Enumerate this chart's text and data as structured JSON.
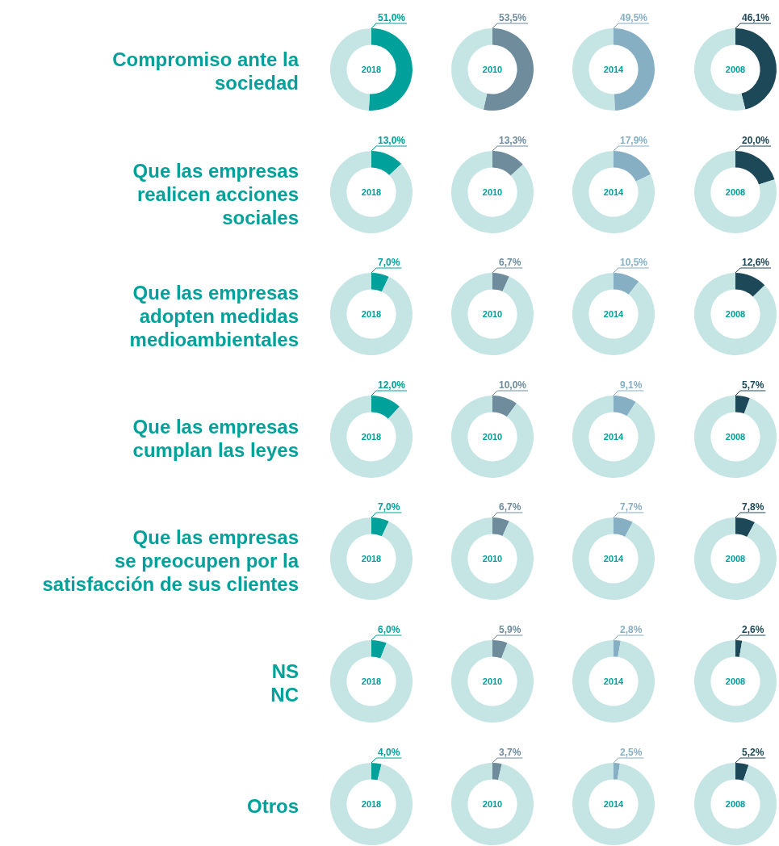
{
  "chart_data": [
    {
      "type": "donut",
      "title": "Compromiso ante la\nsociedad",
      "categories": [
        null,
        null
      ],
      "values": [
        51.0,
        49.0
      ],
      "value_labels": [
        "51,0%",
        null
      ],
      "colors": [
        "#00a19a",
        "#c5e4e4"
      ],
      "annotations": [
        "2018"
      ]
    },
    {
      "type": "donut",
      "categories": [
        null,
        null
      ],
      "values": [
        53.5,
        46.5
      ],
      "value_labels": [
        "53,5%",
        null
      ],
      "colors": [
        "#6e8c9c",
        "#c5e4e4"
      ],
      "annotations": [
        "2010"
      ]
    },
    {
      "type": "donut",
      "categories": [
        null,
        null
      ],
      "values": [
        49.5,
        50.5
      ],
      "value_labels": [
        "49,5%",
        null
      ],
      "colors": [
        "#86afc4",
        "#c5e4e4"
      ],
      "annotations": [
        "2014"
      ]
    },
    {
      "type": "donut",
      "categories": [
        null,
        null
      ],
      "values": [
        46.1,
        53.9
      ],
      "value_labels": [
        "46,1%",
        null
      ],
      "colors": [
        "#1d4858",
        "#c5e4e4"
      ],
      "annotations": [
        "2008"
      ]
    },
    {
      "type": "donut",
      "title": "Que las empresas\nrealicen acciones\nsociales",
      "categories": [
        null,
        null
      ],
      "values": [
        13.0,
        87.0
      ],
      "value_labels": [
        "13,0%",
        null
      ],
      "colors": [
        "#00a19a",
        "#c5e4e4"
      ],
      "annotations": [
        "2018"
      ]
    },
    {
      "type": "donut",
      "categories": [
        null,
        null
      ],
      "values": [
        13.3,
        86.7
      ],
      "value_labels": [
        "13,3%",
        null
      ],
      "colors": [
        "#6e8c9c",
        "#c5e4e4"
      ],
      "annotations": [
        "2010"
      ]
    },
    {
      "type": "donut",
      "categories": [
        null,
        null
      ],
      "values": [
        17.9,
        82.1
      ],
      "value_labels": [
        "17,9%",
        null
      ],
      "colors": [
        "#86afc4",
        "#c5e4e4"
      ],
      "annotations": [
        "2014"
      ]
    },
    {
      "type": "donut",
      "categories": [
        null,
        null
      ],
      "values": [
        20.0,
        80.0
      ],
      "value_labels": [
        "20,0%",
        null
      ],
      "colors": [
        "#1d4858",
        "#c5e4e4"
      ],
      "annotations": [
        "2008"
      ]
    },
    {
      "type": "donut",
      "title": "Que las empresas\nadopten medidas\nmedioambientales",
      "categories": [
        null,
        null
      ],
      "values": [
        7.0,
        93.0
      ],
      "value_labels": [
        "7,0%",
        null
      ],
      "colors": [
        "#00a19a",
        "#c5e4e4"
      ],
      "annotations": [
        "2018"
      ]
    },
    {
      "type": "donut",
      "categories": [
        null,
        null
      ],
      "values": [
        6.7,
        93.3
      ],
      "value_labels": [
        "6,7%",
        null
      ],
      "colors": [
        "#6e8c9c",
        "#c5e4e4"
      ],
      "annotations": [
        "2010"
      ]
    },
    {
      "type": "donut",
      "categories": [
        null,
        null
      ],
      "values": [
        10.5,
        89.5
      ],
      "value_labels": [
        "10,5%",
        null
      ],
      "colors": [
        "#86afc4",
        "#c5e4e4"
      ],
      "annotations": [
        "2014"
      ]
    },
    {
      "type": "donut",
      "categories": [
        null,
        null
      ],
      "values": [
        12.6,
        87.4
      ],
      "value_labels": [
        "12,6%",
        null
      ],
      "colors": [
        "#1d4858",
        "#c5e4e4"
      ],
      "annotations": [
        "2008"
      ]
    },
    {
      "type": "donut",
      "title": "Que las empresas\ncumplan las leyes",
      "categories": [
        null,
        null
      ],
      "values": [
        12.0,
        88.0
      ],
      "value_labels": [
        "12,0%",
        null
      ],
      "colors": [
        "#00a19a",
        "#c5e4e4"
      ],
      "annotations": [
        "2018"
      ]
    },
    {
      "type": "donut",
      "categories": [
        null,
        null
      ],
      "values": [
        10.0,
        90.0
      ],
      "value_labels": [
        "10,0%",
        null
      ],
      "colors": [
        "#6e8c9c",
        "#c5e4e4"
      ],
      "annotations": [
        "2010"
      ]
    },
    {
      "type": "donut",
      "categories": [
        null,
        null
      ],
      "values": [
        9.1,
        90.9
      ],
      "value_labels": [
        "9,1%",
        null
      ],
      "colors": [
        "#86afc4",
        "#c5e4e4"
      ],
      "annotations": [
        "2014"
      ]
    },
    {
      "type": "donut",
      "categories": [
        null,
        null
      ],
      "values": [
        5.7,
        94.3
      ],
      "value_labels": [
        "5,7%",
        null
      ],
      "colors": [
        "#1d4858",
        "#c5e4e4"
      ],
      "annotations": [
        "2008"
      ]
    },
    {
      "type": "donut",
      "title": "Que las empresas\nse preocupen por la\nsatisfacción de sus clientes",
      "categories": [
        null,
        null
      ],
      "values": [
        7.0,
        93.0
      ],
      "value_labels": [
        "7,0%",
        null
      ],
      "colors": [
        "#00a19a",
        "#c5e4e4"
      ],
      "annotations": [
        "2018"
      ]
    },
    {
      "type": "donut",
      "categories": [
        null,
        null
      ],
      "values": [
        6.7,
        93.3
      ],
      "value_labels": [
        "6,7%",
        null
      ],
      "colors": [
        "#6e8c9c",
        "#c5e4e4"
      ],
      "annotations": [
        "2010"
      ]
    },
    {
      "type": "donut",
      "categories": [
        null,
        null
      ],
      "values": [
        7.7,
        92.3
      ],
      "value_labels": [
        "7,7%",
        null
      ],
      "colors": [
        "#86afc4",
        "#c5e4e4"
      ],
      "annotations": [
        "2014"
      ]
    },
    {
      "type": "donut",
      "categories": [
        null,
        null
      ],
      "values": [
        7.8,
        92.2
      ],
      "value_labels": [
        "7,8%",
        null
      ],
      "colors": [
        "#1d4858",
        "#c5e4e4"
      ],
      "annotations": [
        "2008"
      ]
    },
    {
      "type": "donut",
      "title": "NS\nNC",
      "categories": [
        null,
        null
      ],
      "values": [
        6.0,
        94.0
      ],
      "value_labels": [
        "6,0%",
        null
      ],
      "colors": [
        "#00a19a",
        "#c5e4e4"
      ],
      "annotations": [
        "2018"
      ]
    },
    {
      "type": "donut",
      "categories": [
        null,
        null
      ],
      "values": [
        5.9,
        94.1
      ],
      "value_labels": [
        "5,9%",
        null
      ],
      "colors": [
        "#6e8c9c",
        "#c5e4e4"
      ],
      "annotations": [
        "2010"
      ]
    },
    {
      "type": "donut",
      "categories": [
        null,
        null
      ],
      "values": [
        2.8,
        97.2
      ],
      "value_labels": [
        "2,8%",
        null
      ],
      "colors": [
        "#86afc4",
        "#c5e4e4"
      ],
      "annotations": [
        "2014"
      ]
    },
    {
      "type": "donut",
      "categories": [
        null,
        null
      ],
      "values": [
        2.6,
        97.4
      ],
      "value_labels": [
        "2,6%",
        null
      ],
      "colors": [
        "#1d4858",
        "#c5e4e4"
      ],
      "annotations": [
        "2008"
      ]
    },
    {
      "type": "donut",
      "title": "Otros",
      "categories": [
        null,
        null
      ],
      "values": [
        4.0,
        96.0
      ],
      "value_labels": [
        "4,0%",
        null
      ],
      "colors": [
        "#00a19a",
        "#c5e4e4"
      ],
      "annotations": [
        "2018"
      ]
    },
    {
      "type": "donut",
      "categories": [
        null,
        null
      ],
      "values": [
        3.7,
        96.3
      ],
      "value_labels": [
        "3,7%",
        null
      ],
      "colors": [
        "#6e8c9c",
        "#c5e4e4"
      ],
      "annotations": [
        "2010"
      ]
    },
    {
      "type": "donut",
      "categories": [
        null,
        null
      ],
      "values": [
        2.5,
        97.5
      ],
      "value_labels": [
        "2,5%",
        null
      ],
      "colors": [
        "#86afc4",
        "#c5e4e4"
      ],
      "annotations": [
        "2014"
      ]
    },
    {
      "type": "donut",
      "categories": [
        null,
        null
      ],
      "values": [
        5.2,
        94.8
      ],
      "value_labels": [
        "5,2%",
        null
      ],
      "colors": [
        "#1d4858",
        "#c5e4e4"
      ],
      "annotations": [
        "2008"
      ]
    }
  ]
}
